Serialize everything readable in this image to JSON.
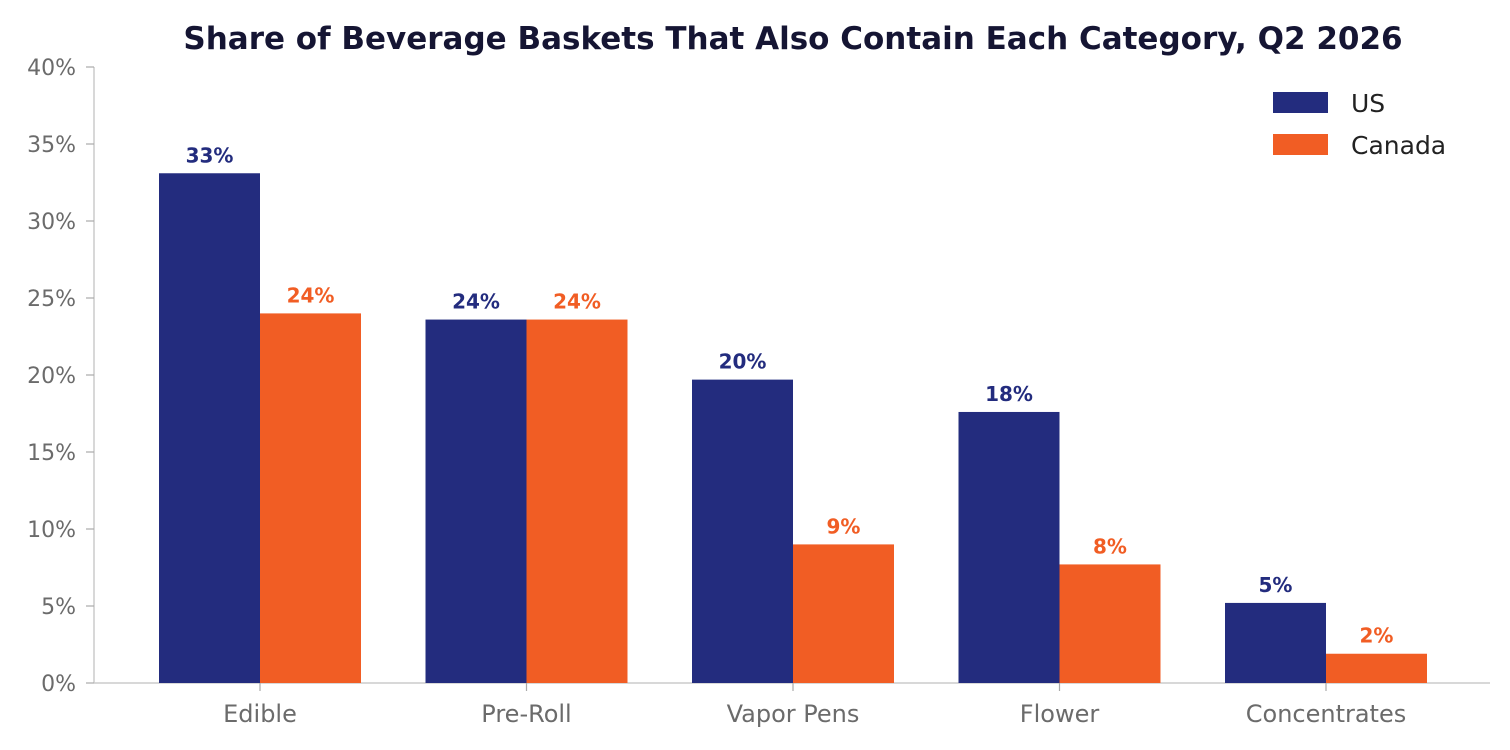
{
  "chart_data": {
    "type": "bar",
    "title": "Share of Beverage Baskets That Also Contain Each Category, Q2 2026",
    "xlabel": "",
    "ylabel": "",
    "categories": [
      "Edible",
      "Pre-Roll",
      "Vapor Pens",
      "Flower",
      "Concentrates"
    ],
    "series": [
      {
        "name": "US",
        "color": "#232c7e",
        "values": [
          33.1,
          23.6,
          19.7,
          17.6,
          5.2
        ],
        "labels": [
          "33%",
          "24%",
          "20%",
          "18%",
          "5%"
        ]
      },
      {
        "name": "Canada",
        "color": "#f15d24",
        "values": [
          24.0,
          23.6,
          9.0,
          7.7,
          1.9
        ],
        "labels": [
          "24%",
          "24%",
          "9%",
          "8%",
          "2%"
        ]
      }
    ],
    "ylim": [
      0,
      40
    ],
    "yticks": [
      0,
      5,
      10,
      15,
      20,
      25,
      30,
      35,
      40
    ],
    "ytick_labels": [
      "0%",
      "5%",
      "10%",
      "15%",
      "20%",
      "25%",
      "30%",
      "35%",
      "40%"
    ],
    "grid": false,
    "legend_position": "top-right"
  }
}
